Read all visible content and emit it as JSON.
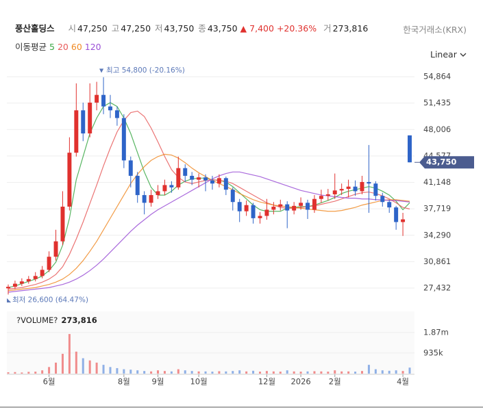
{
  "header": {
    "name": "풍산홀딩스",
    "quotes": [
      {
        "label": "시",
        "value": "47,250"
      },
      {
        "label": "고",
        "value": "47,250"
      },
      {
        "label": "저",
        "value": "43,750"
      },
      {
        "label": "종",
        "value": "43,750"
      }
    ],
    "change": {
      "value": "7,400",
      "percent": "+20.36%"
    },
    "volume": {
      "label": "거",
      "value": "273,816"
    },
    "exchange": "한국거래소(KRX)"
  },
  "scale_mode": "Linear",
  "chart_data": [
    {
      "type": "candlestick",
      "legend_title": "이동평균",
      "up_color": "#e0312e",
      "down_color": "#2e64c8",
      "xlim": [
        0,
        59
      ],
      "ylim": [
        25300,
        56380
      ],
      "yticks": [
        {
          "value": 54864,
          "label": "54,864"
        },
        {
          "value": 51435,
          "label": "51,435"
        },
        {
          "value": 48006,
          "label": "48,006"
        },
        {
          "value": 44577,
          "label": "44,577"
        },
        {
          "value": 41148,
          "label": "41,148"
        },
        {
          "value": 37719,
          "label": "37,719"
        },
        {
          "value": 34290,
          "label": "34,290"
        },
        {
          "value": 30861,
          "label": "30,861"
        },
        {
          "value": 27432,
          "label": "27,432"
        }
      ],
      "grid": true,
      "open": [
        27400,
        27600,
        28000,
        28300,
        28600,
        29000,
        29800,
        31500,
        33500,
        38000,
        45000,
        50500,
        47500,
        51500,
        52500,
        51000,
        50500,
        49500,
        44000,
        42000,
        39500,
        38500,
        39500,
        40000,
        40800,
        40500,
        43000,
        42000,
        41500,
        41800,
        41400,
        41000,
        41700,
        40200,
        38600,
        37400,
        38200,
        36500,
        36800,
        37600,
        38000,
        38300,
        37500,
        38100,
        38500,
        37600,
        39000,
        39400,
        39600,
        40100,
        40300,
        40600,
        40000,
        41200,
        41000,
        39400,
        38600,
        37900,
        36000,
        47250
      ],
      "high": [
        27900,
        28400,
        28700,
        29000,
        29500,
        30300,
        32200,
        35000,
        40000,
        47000,
        54000,
        51500,
        54000,
        54200,
        54800,
        52500,
        51000,
        50000,
        44500,
        42500,
        40000,
        40200,
        40800,
        41500,
        41300,
        44500,
        43500,
        42500,
        42300,
        42200,
        42000,
        42200,
        41900,
        40500,
        39000,
        38800,
        38500,
        37300,
        39000,
        38600,
        38900,
        38700,
        38600,
        39200,
        38900,
        39500,
        40200,
        40300,
        42300,
        41000,
        41500,
        41400,
        42000,
        46000,
        41300,
        39800,
        38900,
        38100,
        37200,
        47250
      ],
      "low": [
        26600,
        27300,
        27700,
        28000,
        28300,
        28700,
        29500,
        31000,
        33000,
        37500,
        44500,
        46500,
        47000,
        50500,
        50000,
        49500,
        48500,
        43000,
        40500,
        38500,
        37000,
        38000,
        39000,
        39500,
        39800,
        40200,
        41200,
        40800,
        40500,
        40000,
        40200,
        40500,
        39500,
        37500,
        36000,
        36800,
        35800,
        35800,
        36300,
        37000,
        37500,
        35200,
        37000,
        37600,
        36400,
        37200,
        38500,
        38800,
        39000,
        39500,
        39200,
        39400,
        39600,
        37200,
        38800,
        38000,
        37200,
        35000,
        34200,
        43750
      ],
      "close": [
        27600,
        28000,
        28300,
        28600,
        29000,
        29800,
        31500,
        33500,
        38000,
        45000,
        50500,
        47500,
        51500,
        52500,
        51000,
        50500,
        49500,
        44000,
        42000,
        39500,
        38500,
        39500,
        40000,
        40800,
        40500,
        43000,
        42000,
        41500,
        41800,
        41400,
        41000,
        41700,
        40200,
        38600,
        37400,
        38200,
        36500,
        36800,
        37600,
        38000,
        38300,
        37500,
        38100,
        38500,
        37600,
        39000,
        39400,
        39600,
        40100,
        40300,
        40600,
        40000,
        41200,
        41000,
        39400,
        38600,
        37900,
        36000,
        36350,
        43750
      ],
      "current_price": {
        "value": 43750,
        "label": "43,750"
      },
      "annotations": [
        {
          "text": "최고 54,800 (-20.16%)"
        },
        {
          "text": "최저 26,600 (64.47%)"
        }
      ],
      "series": [
        {
          "name": "5",
          "color": "#3aa845",
          "values": [
            27500,
            27700,
            28000,
            28300,
            28600,
            29000,
            29700,
            30800,
            33000,
            36500,
            41500,
            44500,
            47500,
            49500,
            51000,
            51500,
            51000,
            49500,
            47500,
            45000,
            42500,
            40500,
            39500,
            39500,
            40000,
            40800,
            41300,
            41600,
            41700,
            41700,
            41500,
            41400,
            41200,
            40600,
            39800,
            39000,
            38200,
            37600,
            37400,
            37400,
            37400,
            37800,
            37900,
            38000,
            38000,
            38200,
            38500,
            38800,
            39200,
            39700,
            40000,
            40200,
            40400,
            40600,
            40400,
            40000,
            39500,
            38700,
            37600,
            38500
          ]
        },
        {
          "name": "20",
          "color": "#e85a5a",
          "values": [
            27300,
            27400,
            27500,
            27700,
            27900,
            28200,
            28600,
            29200,
            30200,
            31800,
            33800,
            36000,
            38400,
            40800,
            43300,
            45600,
            47700,
            49200,
            50200,
            50400,
            49700,
            48200,
            46400,
            44500,
            42800,
            41800,
            41200,
            41000,
            41200,
            41400,
            41500,
            41400,
            41300,
            41000,
            40500,
            40000,
            39500,
            39000,
            38500,
            38200,
            37900,
            37800,
            37800,
            37900,
            38000,
            38100,
            38300,
            38500,
            38700,
            39000,
            39300,
            39600,
            39800,
            39900,
            39700,
            39400,
            39000,
            38500,
            37900,
            37700
          ]
        },
        {
          "name": "60",
          "color": "#f08a24",
          "values": [
            27100,
            27200,
            27300,
            27400,
            27500,
            27700,
            27900,
            28200,
            28600,
            29200,
            30000,
            31000,
            32200,
            33500,
            35000,
            36500,
            38000,
            39500,
            41000,
            42200,
            43200,
            44000,
            44500,
            44800,
            44700,
            44300,
            43700,
            43000,
            42400,
            41900,
            41400,
            41000,
            40600,
            40200,
            39700,
            39300,
            38900,
            38600,
            38400,
            38200,
            38100,
            38000,
            37900,
            37800,
            37700,
            37600,
            37500,
            37400,
            37400,
            37500,
            37700,
            37900,
            38200,
            38400,
            38600,
            38800,
            38900,
            38900,
            38800,
            38700
          ]
        },
        {
          "name": "120",
          "color": "#9a4fd6",
          "values": [
            26900,
            27000,
            27100,
            27200,
            27300,
            27400,
            27500,
            27700,
            27900,
            28200,
            28600,
            29100,
            29700,
            30400,
            31200,
            32100,
            33000,
            33900,
            34800,
            35600,
            36300,
            37000,
            37600,
            38100,
            38600,
            39100,
            39600,
            40100,
            40600,
            41100,
            41600,
            42000,
            42300,
            42500,
            42500,
            42300,
            42100,
            41900,
            41600,
            41300,
            41000,
            40700,
            40400,
            40100,
            39900,
            39700,
            39500,
            39400,
            39300,
            39200,
            39100,
            39100,
            39000,
            39000,
            38900,
            38900,
            38800,
            38800,
            38700,
            38600
          ]
        }
      ]
    },
    {
      "type": "bar",
      "title": "?VOLUME?",
      "title_value": "273,816",
      "up_color": "#f08c8c",
      "down_color": "#8fb0e6",
      "xlim": [
        0,
        59
      ],
      "xticks": [
        {
          "value": 6,
          "label": "6월"
        },
        {
          "value": 17,
          "label": "8월"
        },
        {
          "value": 22,
          "label": "9월"
        },
        {
          "value": 28,
          "label": "10월"
        },
        {
          "value": 38,
          "label": "12월"
        },
        {
          "value": 43,
          "label": "2026"
        },
        {
          "value": 48,
          "label": "2월"
        },
        {
          "value": 58,
          "label": "4월"
        }
      ],
      "ylim": [
        0,
        2830000
      ],
      "yticks": [
        {
          "value": 1870000,
          "label": "1.87m"
        },
        {
          "value": 935000,
          "label": "935k"
        }
      ],
      "values": [
        60000,
        70000,
        50000,
        80000,
        90000,
        150000,
        300000,
        500000,
        900000,
        1800000,
        1000000,
        700000,
        600000,
        500000,
        400000,
        300000,
        250000,
        200000,
        180000,
        150000,
        120000,
        100000,
        150000,
        120000,
        100000,
        200000,
        150000,
        120000,
        100000,
        100000,
        90000,
        110000,
        100000,
        120000,
        150000,
        100000,
        130000,
        90000,
        120000,
        100000,
        90000,
        150000,
        100000,
        90000,
        100000,
        110000,
        100000,
        90000,
        150000,
        100000,
        100000,
        90000,
        120000,
        400000,
        200000,
        150000,
        130000,
        150000,
        120000,
        273816
      ]
    }
  ]
}
